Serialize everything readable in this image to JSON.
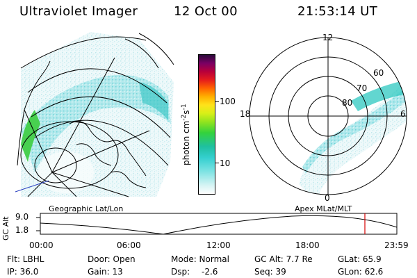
{
  "header": {
    "instrument": "Ultraviolet Imager",
    "date": "12 Oct 00",
    "time": "21:53:14 UT"
  },
  "colorbar": {
    "unit_prefix": "photon cm",
    "unit_exp1": "-2",
    "unit_mid": "s",
    "unit_exp2": "-1",
    "ticks": [
      "100",
      "10"
    ]
  },
  "geo_map": {
    "label": "Geographic Lat/Lon"
  },
  "polar_plot": {
    "label": "Apex MLat/MLT",
    "mlt_labels": [
      "12",
      "18",
      "6",
      "0"
    ],
    "mlat_labels": [
      "60",
      "70",
      "80"
    ]
  },
  "orbit_plot": {
    "ylabel": "GC Alt",
    "yticks": [
      "9.0",
      "1.8"
    ],
    "xticks": [
      "00:00",
      "06:00",
      "12:00",
      "18:00",
      "23:59"
    ],
    "current_time_marker": "21:53",
    "marker_color": "#d40000"
  },
  "status": {
    "row1": {
      "filter": "Flt: LBHL",
      "door": "Door: Open",
      "mode": "Mode: Normal",
      "gc_alt": "GC Alt: 7.7 Re",
      "glat": "GLat: 65.9"
    },
    "row2": {
      "ip": "IP: 36.0",
      "gain": "Gain: 13",
      "dsp_label": "Dsp:",
      "dsp_value": "-2.6",
      "seq": "Seq: 39",
      "glon": "GLon: 62.6"
    }
  },
  "colors": {
    "aurora_low": "#8ee0e0",
    "aurora_mid": "#20c8c8",
    "aurora_high": "#40d040",
    "speckle": "#c8eef0"
  }
}
